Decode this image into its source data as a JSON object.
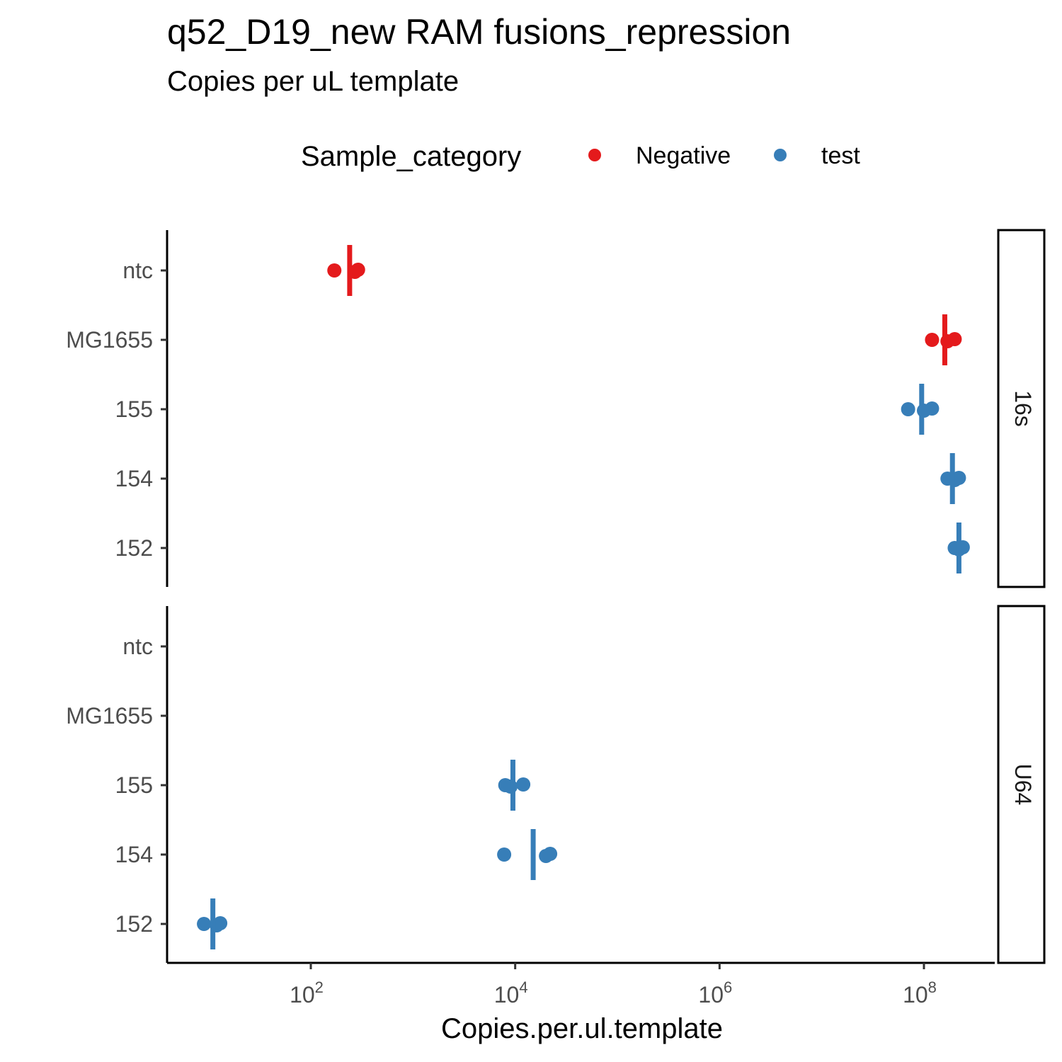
{
  "chart_data": {
    "type": "scatter",
    "title": "q52_D19_new RAM fusions_repression",
    "subtitle": "Copies per uL template",
    "xlabel": "Copies.per.ul.template",
    "x_scale": "log10",
    "xlim": [
      3,
      500000000
    ],
    "x_ticks": [
      {
        "value": 100,
        "base": "10",
        "exp": "2"
      },
      {
        "value": 10000,
        "base": "10",
        "exp": "4"
      },
      {
        "value": 1000000,
        "base": "10",
        "exp": "6"
      },
      {
        "value": 100000000,
        "base": "10",
        "exp": "8"
      }
    ],
    "categories": [
      "ntc",
      "MG1655",
      "155",
      "154",
      "152"
    ],
    "legend": {
      "title": "Sample_category",
      "position": "top",
      "items": [
        {
          "name": "Negative",
          "color": "#e41a1c"
        },
        {
          "name": "test",
          "color": "#377eb8"
        }
      ]
    },
    "panels": [
      {
        "label": "16s",
        "points": [
          {
            "sample": "ntc",
            "category": "Negative",
            "values": [
              170,
              270,
              290
            ]
          },
          {
            "sample": "MG1655",
            "category": "Negative",
            "values": [
              120000000,
              170000000,
              200000000
            ]
          },
          {
            "sample": "155",
            "category": "test",
            "values": [
              70000000,
              100000000,
              120000000
            ]
          },
          {
            "sample": "154",
            "category": "test",
            "values": [
              170000000,
              200000000,
              220000000
            ]
          },
          {
            "sample": "152",
            "category": "test",
            "values": [
              200000000,
              220000000,
              240000000
            ]
          }
        ],
        "means": [
          {
            "sample": "ntc",
            "category": "Negative",
            "value": 240
          },
          {
            "sample": "MG1655",
            "category": "Negative",
            "value": 160000000
          },
          {
            "sample": "155",
            "category": "test",
            "value": 95000000
          },
          {
            "sample": "154",
            "category": "test",
            "value": 190000000
          },
          {
            "sample": "152",
            "category": "test",
            "value": 220000000
          }
        ]
      },
      {
        "label": "U64",
        "points": [
          {
            "sample": "155",
            "category": "test",
            "values": [
              8000,
              9000,
              12000
            ]
          },
          {
            "sample": "154",
            "category": "test",
            "values": [
              7800,
              20000,
              22000
            ]
          },
          {
            "sample": "152",
            "category": "test",
            "values": [
              9,
              12,
              13
            ]
          }
        ],
        "means": [
          {
            "sample": "155",
            "category": "test",
            "value": 9500
          },
          {
            "sample": "154",
            "category": "test",
            "value": 15000
          },
          {
            "sample": "152",
            "category": "test",
            "value": 11
          }
        ]
      }
    ]
  }
}
